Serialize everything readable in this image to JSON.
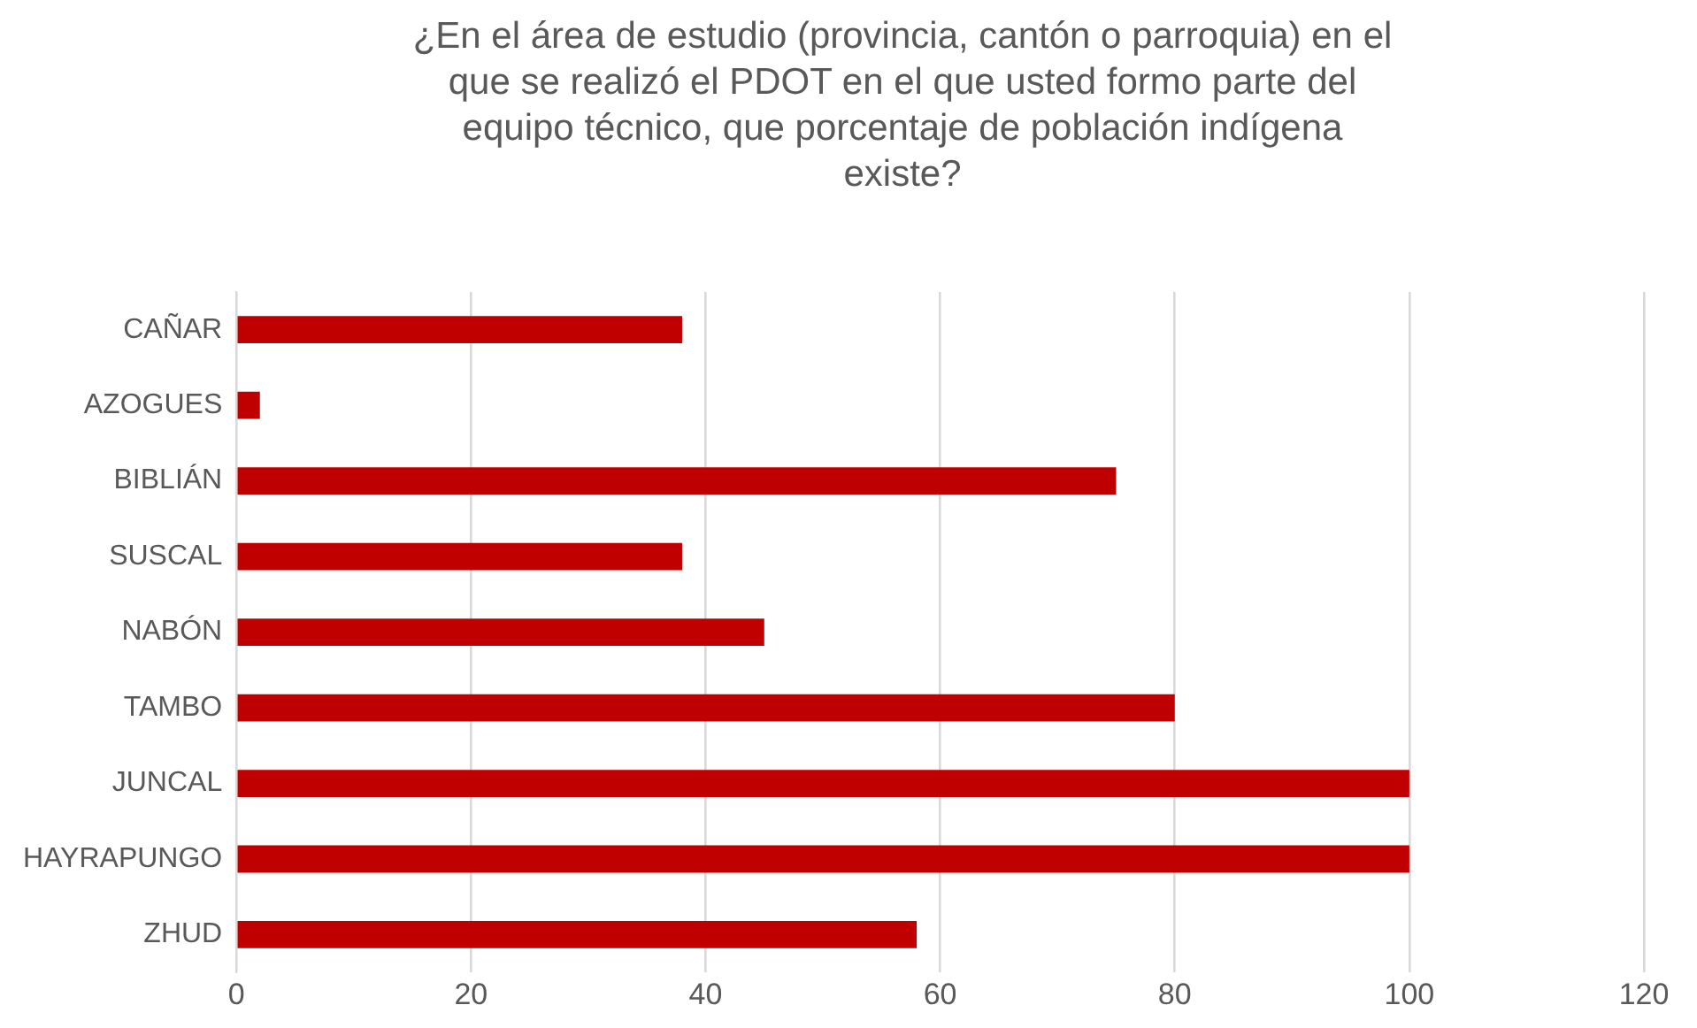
{
  "chart_data": {
    "type": "bar",
    "orientation": "horizontal",
    "title": "¿En el área de estudio (provincia, cantón o parroquia) en el que se realizó el PDOT en el que usted formo parte del equipo técnico, que porcentaje de población indígena existe?",
    "categories": [
      "CAÑAR",
      "AZOGUES",
      "BIBLIÁN",
      "SUSCAL",
      "NABÓN",
      "TAMBO",
      "JUNCAL",
      "HAYRAPUNGO",
      "ZHUD"
    ],
    "values": [
      38,
      2,
      75,
      38,
      45,
      80,
      100,
      100,
      58
    ],
    "color": "#c00000",
    "xlim": [
      0,
      120
    ],
    "xticks": [
      0,
      20,
      40,
      60,
      80,
      100,
      120
    ],
    "grid": "x"
  }
}
